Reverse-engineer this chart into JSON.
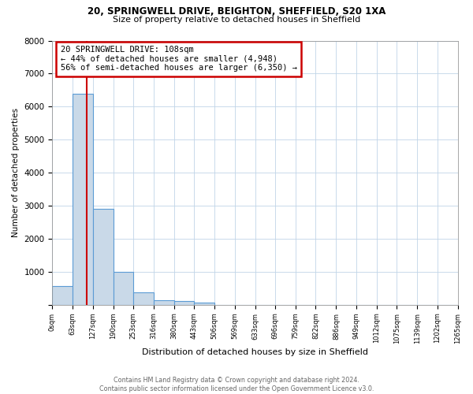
{
  "title": "20, SPRINGWELL DRIVE, BEIGHTON, SHEFFIELD, S20 1XA",
  "subtitle": "Size of property relative to detached houses in Sheffield",
  "xlabel": "Distribution of detached houses by size in Sheffield",
  "ylabel": "Number of detached properties",
  "bin_edges": [
    0,
    63,
    127,
    190,
    253,
    316,
    380,
    443,
    506,
    569,
    633,
    696,
    759,
    822,
    886,
    949,
    1012,
    1075,
    1139,
    1202,
    1265
  ],
  "bar_heights": [
    560,
    6400,
    2900,
    1000,
    380,
    150,
    110,
    60,
    0,
    0,
    0,
    0,
    0,
    0,
    0,
    0,
    0,
    0,
    0,
    0
  ],
  "bar_color": "#c9d9e8",
  "bar_edge_color": "#5b9bd5",
  "property_size": 108,
  "red_line_color": "#cc0000",
  "annotation_box_color": "#cc0000",
  "annotation_text_line1": "20 SPRINGWELL DRIVE: 108sqm",
  "annotation_text_line2": "← 44% of detached houses are smaller (4,948)",
  "annotation_text_line3": "56% of semi-detached houses are larger (6,350) →",
  "ylim": [
    0,
    8000
  ],
  "yticks": [
    0,
    1000,
    2000,
    3000,
    4000,
    5000,
    6000,
    7000,
    8000
  ],
  "xtick_labels": [
    "0sqm",
    "63sqm",
    "127sqm",
    "190sqm",
    "253sqm",
    "316sqm",
    "380sqm",
    "443sqm",
    "506sqm",
    "569sqm",
    "633sqm",
    "696sqm",
    "759sqm",
    "822sqm",
    "886sqm",
    "949sqm",
    "1012sqm",
    "1075sqm",
    "1139sqm",
    "1202sqm",
    "1265sqm"
  ],
  "footer_line1": "Contains HM Land Registry data © Crown copyright and database right 2024.",
  "footer_line2": "Contains public sector information licensed under the Open Government Licence v3.0.",
  "background_color": "#ffffff",
  "grid_color": "#c0d4e8"
}
